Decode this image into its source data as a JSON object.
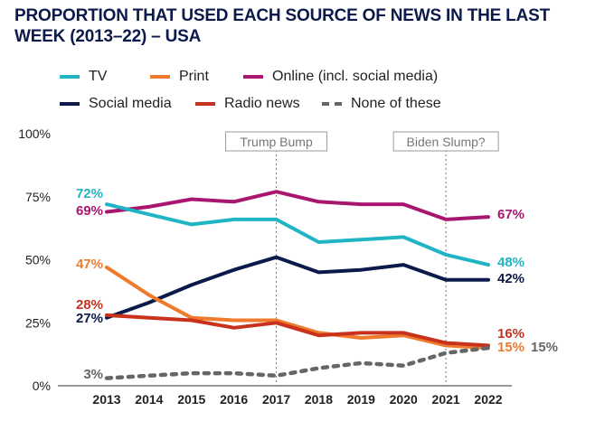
{
  "title": "PROPORTION THAT USED EACH SOURCE OF  NEWS IN THE LAST WEEK (2013–22) – USA",
  "legend": [
    {
      "label": "TV",
      "color": "#1fb5c4",
      "dashed": false
    },
    {
      "label": "Print",
      "color": "#f07a2b",
      "dashed": false
    },
    {
      "label": "Online (incl. social media)",
      "color": "#a8166f",
      "dashed": false
    },
    {
      "label": "Social media",
      "color": "#0b1a4a",
      "dashed": false
    },
    {
      "label": "Radio news",
      "color": "#c8311c",
      "dashed": false
    },
    {
      "label": "None of these",
      "color": "#666666",
      "dashed": true
    }
  ],
  "annotations": [
    {
      "label": "Trump Bump",
      "x": 2017
    },
    {
      "label": "Biden Slump?",
      "x": 2021
    }
  ],
  "chart_data": {
    "type": "line",
    "x": [
      2013,
      2014,
      2015,
      2016,
      2017,
      2018,
      2019,
      2020,
      2021,
      2022
    ],
    "x_tick_labels": [
      "2013",
      "2014",
      "2015",
      "2016",
      "2017",
      "2018",
      "2019",
      "2020",
      "2021",
      "2022"
    ],
    "ylim": [
      0,
      100
    ],
    "y_ticks": [
      0,
      25,
      50,
      75,
      100
    ],
    "y_tick_labels": [
      "0%",
      "25%",
      "50%",
      "75%",
      "100%"
    ],
    "grid": false,
    "series": [
      {
        "name": "Online (incl. social media)",
        "color": "#a8166f",
        "dashed": false,
        "values": [
          69,
          71,
          74,
          73,
          77,
          73,
          72,
          72,
          66,
          67
        ],
        "start_label": "69%",
        "end_label": "67%"
      },
      {
        "name": "TV",
        "color": "#1fb5c4",
        "dashed": false,
        "values": [
          72,
          68,
          64,
          66,
          66,
          57,
          58,
          59,
          52,
          48
        ],
        "start_label": "72%",
        "end_label": "48%"
      },
      {
        "name": "Social media",
        "color": "#0b1a4a",
        "dashed": false,
        "values": [
          27,
          33,
          40,
          46,
          51,
          45,
          46,
          48,
          42,
          42
        ],
        "start_label": "27%",
        "end_label": "42%"
      },
      {
        "name": "Print",
        "color": "#f07a2b",
        "dashed": false,
        "values": [
          47,
          36,
          27,
          26,
          26,
          21,
          19,
          20,
          16,
          15
        ],
        "start_label": "47%",
        "end_label": "15%"
      },
      {
        "name": "Radio news",
        "color": "#c8311c",
        "dashed": false,
        "values": [
          28,
          27,
          26,
          23,
          25,
          20,
          21,
          21,
          17,
          16
        ],
        "start_label": "28%",
        "end_label": "16%"
      },
      {
        "name": "None of these",
        "color": "#666666",
        "dashed": true,
        "values": [
          3,
          4,
          5,
          5,
          4,
          7,
          9,
          8,
          13,
          15
        ],
        "start_label": "3%",
        "end_label": "15%"
      }
    ]
  }
}
